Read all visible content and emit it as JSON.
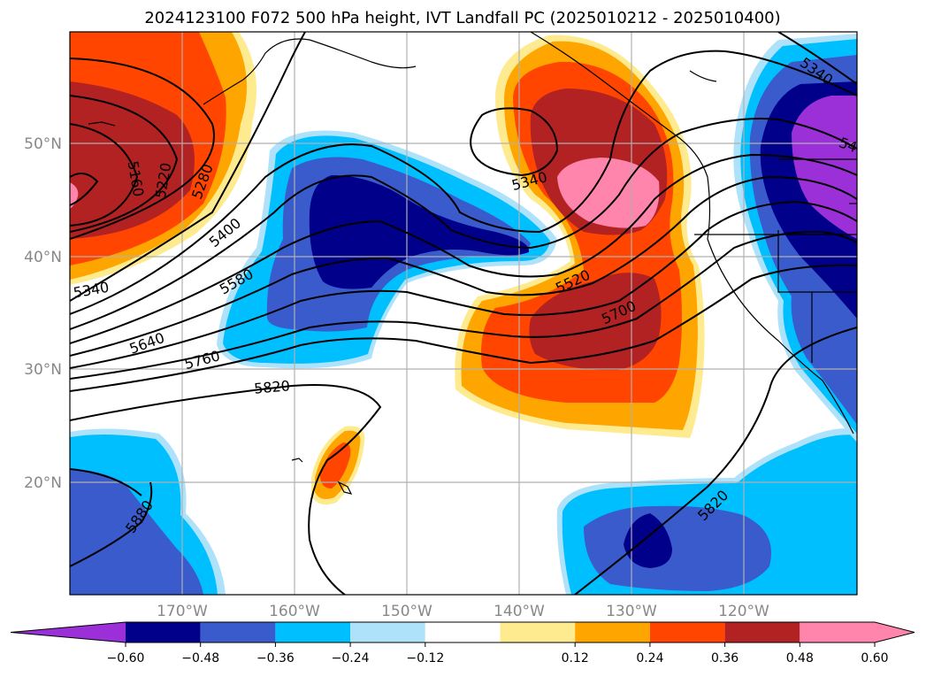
{
  "title": "2024123100 F072 500 hPa height, IVT Landfall PC (2025010212 - 2025010400)",
  "lat_labels": [
    "50°N",
    "40°N",
    "30°N",
    "20°N"
  ],
  "lon_labels": [
    "170°W",
    "160°W",
    "150°W",
    "140°W",
    "130°W",
    "120°W"
  ],
  "contour_labels": [
    "5160",
    "5220",
    "5280",
    "5340",
    "5400",
    "5580",
    "5640",
    "5760",
    "5820",
    "5880",
    "5340",
    "5520",
    "5700",
    "5820",
    "5340",
    "54"
  ],
  "colorbar": {
    "ticks": [
      "−0.60",
      "−0.48",
      "−0.36",
      "−0.24",
      "−0.12",
      "0.12",
      "0.24",
      "0.36",
      "0.48",
      "0.60"
    ],
    "colors": [
      "#9b30d9",
      "#00008b",
      "#3a5bcc",
      "#00bfff",
      "#aee2fa",
      "#ffffff",
      "#ffeb8f",
      "#ffa500",
      "#ff4500",
      "#b22222",
      "#ff85ad",
      "#ff85ad"
    ]
  },
  "fill_colors": {
    "pink": "#ff85ad",
    "darkred": "#b22222",
    "orangered": "#ff4500",
    "orange": "#ffa500",
    "yellow": "#ffeb8f",
    "lightblue": "#aee2fa",
    "cyan": "#00bfff",
    "blue": "#3a5bcc",
    "navy": "#00008b",
    "purple": "#9b30d9"
  }
}
